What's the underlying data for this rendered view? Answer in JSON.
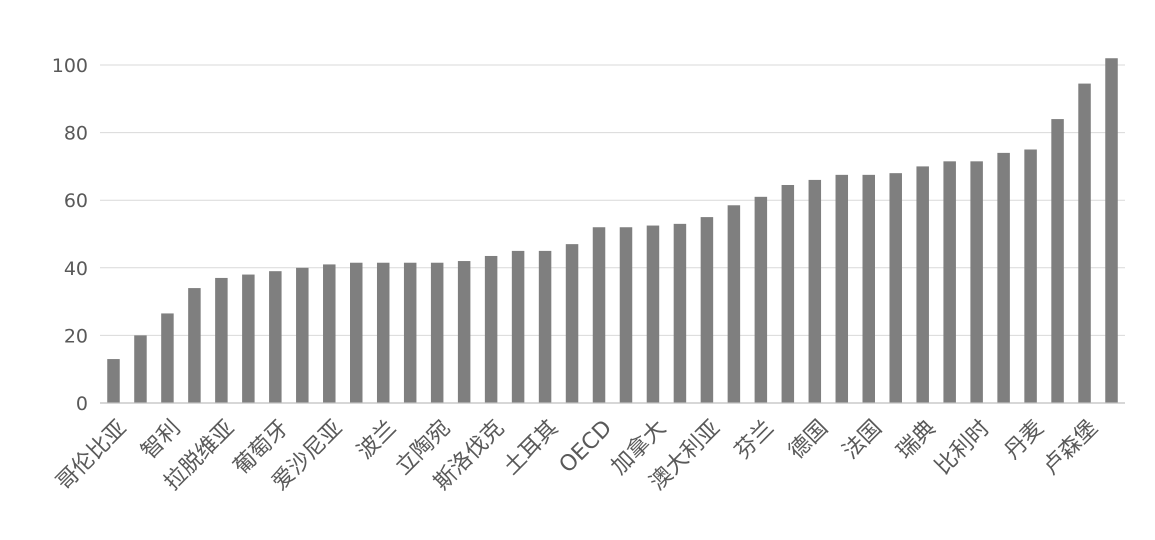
{
  "chart_data": {
    "type": "bar",
    "title": "",
    "xlabel": "",
    "ylabel": "",
    "ylim": [
      0,
      100
    ],
    "yticks": [
      0,
      20,
      40,
      60,
      80,
      100
    ],
    "grid": true,
    "legend": "none",
    "bar_color": "#7f7f7f",
    "categories": [
      "哥伦比亚",
      "",
      "智利",
      "",
      "拉脱维亚",
      "",
      "葡萄牙",
      "",
      "爱沙尼亚",
      "",
      "波兰",
      "",
      "立陶宛",
      "",
      "斯洛伐克",
      "",
      "土耳其",
      "",
      "OECD",
      "",
      "加拿大",
      "",
      "澳大利亚",
      "",
      "芬兰",
      "",
      "德国",
      "",
      "法国",
      "",
      "瑞典",
      "",
      "比利时",
      "",
      "丹麦",
      "",
      "卢森堡",
      ""
    ],
    "values": [
      13,
      20,
      26.5,
      34,
      37,
      38,
      39,
      40,
      41,
      41.5,
      41.5,
      41.5,
      41.5,
      42,
      43.5,
      45,
      45,
      47,
      52,
      52,
      52.5,
      53,
      55,
      58.5,
      61,
      64.5,
      66,
      67.5,
      67.5,
      68,
      70,
      71.5,
      71.5,
      74,
      75,
      84,
      94.5,
      102
    ]
  }
}
